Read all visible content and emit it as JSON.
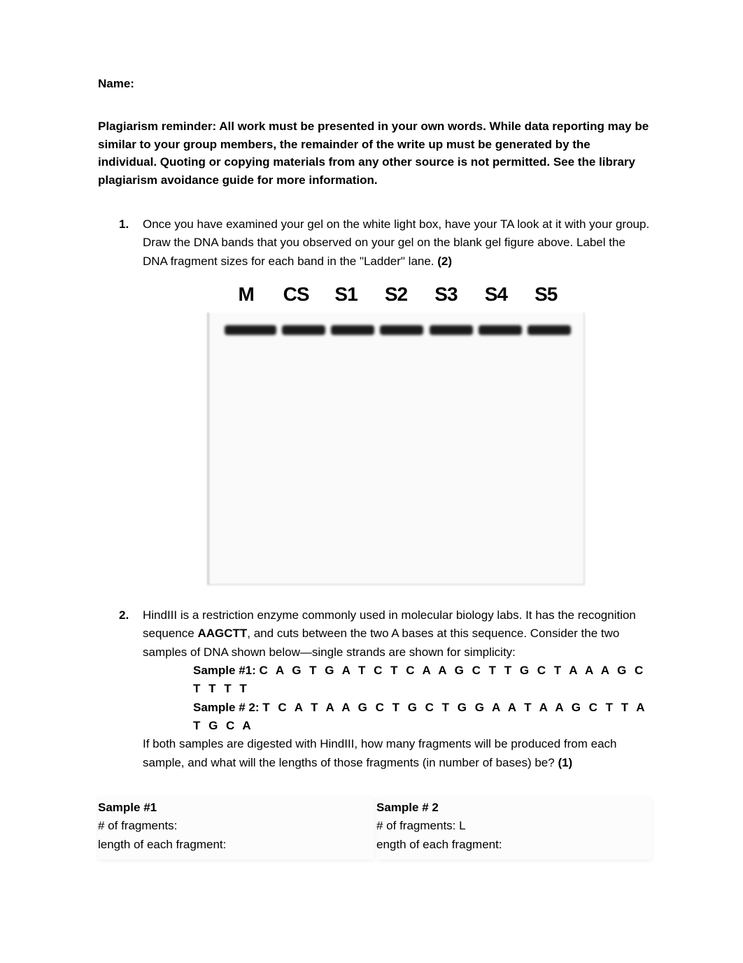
{
  "name_label": "Name:",
  "plagiarism_text": "Plagiarism reminder: All work must be presented in your own words. While data reporting may be similar to your group members, the remainder of the write up must be generated by the individual. Quoting or copying materials from any other source is not permitted. See the library plagiarism avoidance guide for more information.",
  "q1": {
    "num": "1.",
    "text_part1": "Once you have examined your gel on the white light box, have your TA look at it with your group. Draw the DNA bands that you observed on your gel on the blank gel figure above. Label the DNA fragment sizes for each band in the \"Ladder\" lane. ",
    "points": "(2)"
  },
  "lane_labels": [
    "M",
    "CS",
    "S1",
    "S2",
    "S3",
    "S4",
    "S5"
  ],
  "gel": {
    "background": "#fafafa",
    "border_color": "#d0d0d0",
    "band_color": "#1a1a1a"
  },
  "q2": {
    "num": "2.",
    "text_part1": "HindIII is a restriction enzyme commonly used in molecular biology labs. It has the recognition sequence ",
    "recognition": "AAGCTT",
    "text_part2": ", and cuts between the two A bases at this sequence. Consider the two samples of DNA shown below—single strands are shown for simplicity:",
    "sample1_label": "Sample #1: ",
    "sample1_seq": "C A G T G A T C T C A A G C T T G C T A A A G C T T T T",
    "sample2_label": "Sample # 2: ",
    "sample2_seq": "T C A T A A G C T G C T G G A A T A A G C T T A T G C A",
    "text_part3": "If both samples are digested with HindIII, how many fragments will be produced from each sample, and what will the lengths of those fragments (in number of bases) be? ",
    "points": "(1)"
  },
  "answers": {
    "s1_title": "Sample #1",
    "s1_frags": "# of fragments:",
    "s1_length": "length of each fragment:",
    "s2_title": "Sample # 2",
    "s2_frags": "# of fragments: L",
    "s2_length": "ength of each fragment:"
  }
}
